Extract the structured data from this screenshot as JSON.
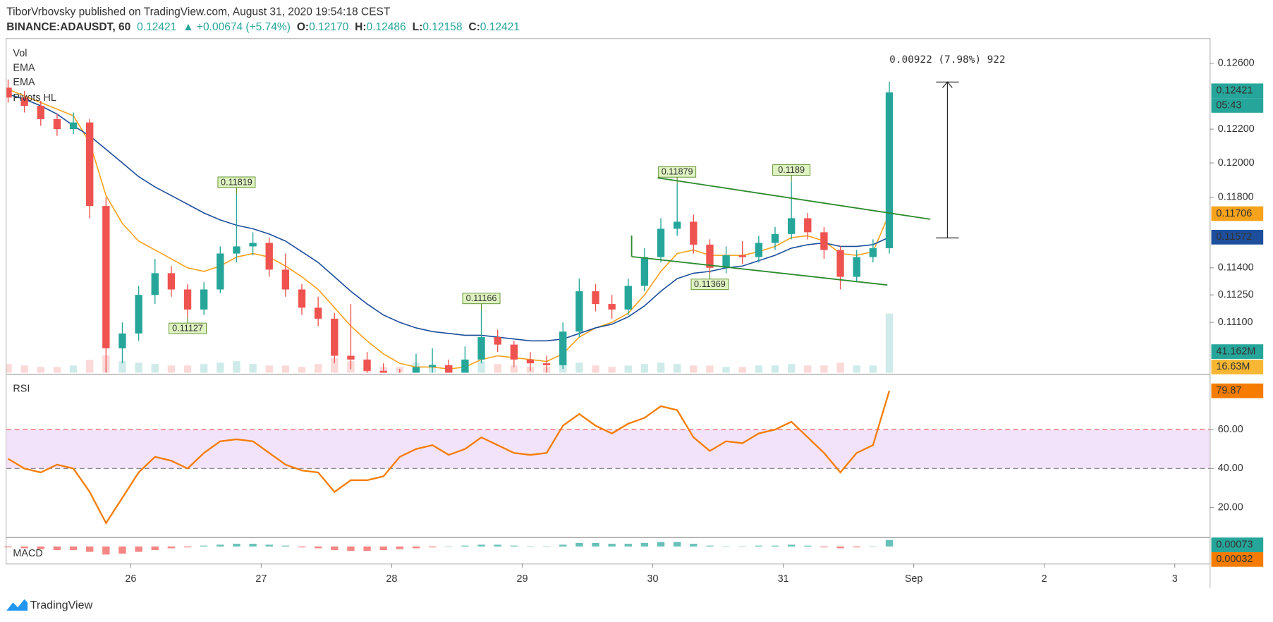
{
  "header": {
    "publisher": "TiborVrbovsky published on TradingView.com, August 31, 2020 19:54:18 CEST",
    "symbol": "BINANCE:ADAUSDT, 60",
    "last": "0.12421",
    "change": "▲ +0.00674 (+5.74%)",
    "o_label": "O:",
    "o": "0.12170",
    "h_label": "H:",
    "h": "0.12486",
    "l_label": "L:",
    "l": "0.12158",
    "c_label": "C:",
    "c": "0.12421"
  },
  "legend": [
    "Vol",
    "EMA",
    "EMA",
    "Pivots HL"
  ],
  "measure": "0.00922 (7.98%) 922",
  "countdown": "05:43",
  "vol_badge": "41.162M",
  "vol_ma_badge": "16.63M",
  "rsi_title": "RSI",
  "macd_title": "MACD",
  "macd_signal_last": "0.00032",
  "brand": "TradingView",
  "chart_data": {
    "type": "candlestick",
    "log_scale": true,
    "up_color": "#26a69a",
    "down_color": "#ef5350",
    "ylim": [
      0.1083,
      0.1275
    ],
    "yticks": [
      {
        "value": 0.111,
        "label": "0.11100"
      },
      {
        "value": 0.1125,
        "label": "0.11250"
      },
      {
        "value": 0.114,
        "label": "0.11400"
      },
      {
        "value": 0.118,
        "label": "0.11800"
      },
      {
        "value": 0.12,
        "label": "0.12000"
      },
      {
        "value": 0.122,
        "label": "0.12200"
      },
      {
        "value": 0.126,
        "label": "0.12600"
      }
    ],
    "xticks": [
      "26",
      "27",
      "28",
      "29",
      "30",
      "31",
      "Sep",
      "2",
      "3"
    ],
    "candles": [
      [
        0.1245,
        0.125,
        0.1236,
        0.1239
      ],
      [
        0.1239,
        0.1243,
        0.123,
        0.1234
      ],
      [
        0.1234,
        0.1237,
        0.1222,
        0.1226
      ],
      [
        0.1226,
        0.1229,
        0.1216,
        0.122
      ],
      [
        0.122,
        0.123,
        0.1217,
        0.1224
      ],
      [
        0.1224,
        0.1226,
        0.1168,
        0.1175
      ],
      [
        0.1175,
        0.118,
        0.1083,
        0.1096
      ],
      [
        0.1096,
        0.111,
        0.1088,
        0.1104
      ],
      [
        0.1104,
        0.113,
        0.11,
        0.1125
      ],
      [
        0.1125,
        0.1145,
        0.112,
        0.1137
      ],
      [
        0.1137,
        0.1141,
        0.1124,
        0.1128
      ],
      [
        0.1128,
        0.1131,
        0.11127,
        0.1117
      ],
      [
        0.1117,
        0.1132,
        0.1114,
        0.1128
      ],
      [
        0.1128,
        0.1152,
        0.1126,
        0.1148
      ],
      [
        0.1148,
        0.11819,
        0.1143,
        0.1152
      ],
      [
        0.1152,
        0.116,
        0.1147,
        0.1154
      ],
      [
        0.1154,
        0.1157,
        0.1135,
        0.1139
      ],
      [
        0.1139,
        0.1148,
        0.1124,
        0.1128
      ],
      [
        0.1128,
        0.1131,
        0.1114,
        0.1118
      ],
      [
        0.1118,
        0.1124,
        0.1108,
        0.1112
      ],
      [
        0.1112,
        0.1115,
        0.1088,
        0.1092
      ],
      [
        0.1092,
        0.112,
        0.1085,
        0.109
      ],
      [
        0.109,
        0.1094,
        0.108,
        0.1084
      ],
      [
        0.1084,
        0.1088,
        0.1076,
        0.108
      ],
      [
        0.108,
        0.1085,
        0.1074,
        0.1079
      ],
      [
        0.1079,
        0.1093,
        0.1077,
        0.1086
      ],
      [
        0.1086,
        0.1096,
        0.1082,
        0.1087
      ],
      [
        0.1087,
        0.109,
        0.108,
        0.1083
      ],
      [
        0.1083,
        0.1097,
        0.1081,
        0.109
      ],
      [
        0.109,
        0.11166,
        0.1088,
        0.1102
      ],
      [
        0.1102,
        0.1106,
        0.1094,
        0.1098
      ],
      [
        0.1098,
        0.11,
        0.1086,
        0.109
      ],
      [
        0.109,
        0.1094,
        0.1084,
        0.1088
      ],
      [
        0.1088,
        0.1092,
        0.1083,
        0.1087
      ],
      [
        0.1087,
        0.111,
        0.1085,
        0.1105
      ],
      [
        0.1105,
        0.1134,
        0.1102,
        0.1127
      ],
      [
        0.1127,
        0.1131,
        0.1116,
        0.112
      ],
      [
        0.112,
        0.1125,
        0.1112,
        0.1117
      ],
      [
        0.1117,
        0.1134,
        0.1114,
        0.113
      ],
      [
        0.113,
        0.1151,
        0.1127,
        0.1146
      ],
      [
        0.1146,
        0.1168,
        0.1143,
        0.1162
      ],
      [
        0.1162,
        0.11879,
        0.1158,
        0.1166
      ],
      [
        0.1166,
        0.117,
        0.1148,
        0.1153
      ],
      [
        0.1153,
        0.1156,
        0.11369,
        0.114
      ],
      [
        0.114,
        0.1152,
        0.1137,
        0.1147
      ],
      [
        0.1147,
        0.1155,
        0.1142,
        0.1146
      ],
      [
        0.1146,
        0.1158,
        0.1143,
        0.1154
      ],
      [
        0.1154,
        0.1163,
        0.115,
        0.1159
      ],
      [
        0.1159,
        0.1189,
        0.1156,
        0.1168
      ],
      [
        0.1168,
        0.1171,
        0.1156,
        0.116
      ],
      [
        0.116,
        0.1163,
        0.1145,
        0.115
      ],
      [
        0.115,
        0.1152,
        0.1128,
        0.1135
      ],
      [
        0.1135,
        0.115,
        0.1132,
        0.1146
      ],
      [
        0.1146,
        0.1156,
        0.1143,
        0.1151
      ],
      [
        0.1151,
        0.12486,
        0.1148,
        0.12421
      ]
    ],
    "pivots": [
      {
        "candle": 14,
        "part": 1
      },
      {
        "candle": 11,
        "part": 2
      },
      {
        "candle": 29,
        "part": 1
      },
      {
        "candle": 41,
        "part": 1
      },
      {
        "candle": 48,
        "part": 1
      },
      {
        "candle": 43,
        "part": 2
      }
    ],
    "ema_fast": {
      "color": "#f7a21b",
      "values": [
        0.1244,
        0.124,
        0.1236,
        0.1232,
        0.1228,
        0.1212,
        0.1181,
        0.1165,
        0.1155,
        0.115,
        0.1145,
        0.114,
        0.1138,
        0.1141,
        0.1146,
        0.1148,
        0.1146,
        0.1141,
        0.1135,
        0.1128,
        0.1118,
        0.1108,
        0.11,
        0.1093,
        0.1088,
        0.1086,
        0.1086,
        0.1085,
        0.1086,
        0.109,
        0.1092,
        0.1091,
        0.109,
        0.1089,
        0.1093,
        0.1102,
        0.1107,
        0.111,
        0.1115,
        0.1125,
        0.1138,
        0.1148,
        0.115,
        0.1147,
        0.1147,
        0.1147,
        0.1149,
        0.1152,
        0.1157,
        0.1158,
        0.1155,
        0.1148,
        0.1147,
        0.1149,
        0.11706
      ]
    },
    "ema_slow": {
      "color": "#1e4f9c",
      "values": [
        0.1241,
        0.1238,
        0.1234,
        0.1229,
        0.1222,
        0.1216,
        0.1208,
        0.12,
        0.1192,
        0.1186,
        0.1181,
        0.1176,
        0.1171,
        0.1167,
        0.1164,
        0.1162,
        0.1159,
        0.1155,
        0.1149,
        0.1143,
        0.1135,
        0.1127,
        0.112,
        0.1114,
        0.111,
        0.1107,
        0.1105,
        0.1104,
        0.1103,
        0.1103,
        0.1102,
        0.1101,
        0.11,
        0.11,
        0.1101,
        0.1104,
        0.1107,
        0.1109,
        0.1113,
        0.1119,
        0.1127,
        0.1134,
        0.1137,
        0.1138,
        0.114,
        0.1141,
        0.1144,
        0.1147,
        0.1151,
        0.1153,
        0.1154,
        0.1152,
        0.1152,
        0.1153,
        0.11572
      ]
    },
    "volume": [
      6,
      5,
      4,
      4,
      5,
      9,
      12,
      8,
      7,
      6,
      5,
      5,
      6,
      7,
      8,
      6,
      5,
      5,
      4,
      6,
      10,
      8,
      5,
      4,
      4,
      7,
      6,
      5,
      5,
      8,
      6,
      5,
      4,
      4,
      6,
      7,
      5,
      4,
      5,
      6,
      7,
      6,
      5,
      5,
      4,
      4,
      5,
      5,
      6,
      5,
      5,
      7,
      5,
      5,
      41.162
    ],
    "rsi": {
      "color": "#f57c00",
      "ylim": [
        5,
        87.5
      ],
      "yticks": [
        {
          "value": 20,
          "label": "20.00"
        },
        {
          "value": 40,
          "label": "40.00"
        },
        {
          "value": 60,
          "label": "60.00"
        }
      ],
      "values": [
        45,
        40,
        38,
        42,
        40,
        28,
        12,
        25,
        38,
        46,
        44,
        40,
        48,
        54,
        55,
        54,
        48,
        42,
        39,
        38,
        28,
        34,
        34,
        36,
        46,
        50,
        52,
        47,
        50,
        56,
        52,
        48,
        47,
        48,
        62,
        68,
        62,
        58,
        63,
        66,
        72,
        70,
        56,
        49,
        54,
        53,
        58,
        60,
        64,
        56,
        48,
        38,
        48,
        52,
        79.87
      ]
    },
    "macd": [
      -0.0001,
      -0.0002,
      -0.0003,
      -0.0004,
      -0.0004,
      -0.0006,
      -0.0009,
      -0.0008,
      -0.0006,
      -0.0004,
      -0.0002,
      -0.0001,
      0.0001,
      0.0002,
      0.0003,
      0.0003,
      0.0002,
      0.0001,
      -0.0001,
      -0.0002,
      -0.0004,
      -0.0005,
      -0.0005,
      -0.0004,
      -0.0003,
      -0.0002,
      -0.0001,
      0,
      0.0001,
      0.0002,
      0.0002,
      0.0001,
      0,
      0,
      0.0002,
      0.0004,
      0.0004,
      0.0003,
      0.0003,
      0.0004,
      0.0005,
      0.0005,
      0.0003,
      0.0001,
      0,
      0,
      0.0001,
      0.0001,
      0.0002,
      0.0001,
      -0.0001,
      -0.0002,
      -0.0001,
      0,
      0.00073
    ]
  }
}
